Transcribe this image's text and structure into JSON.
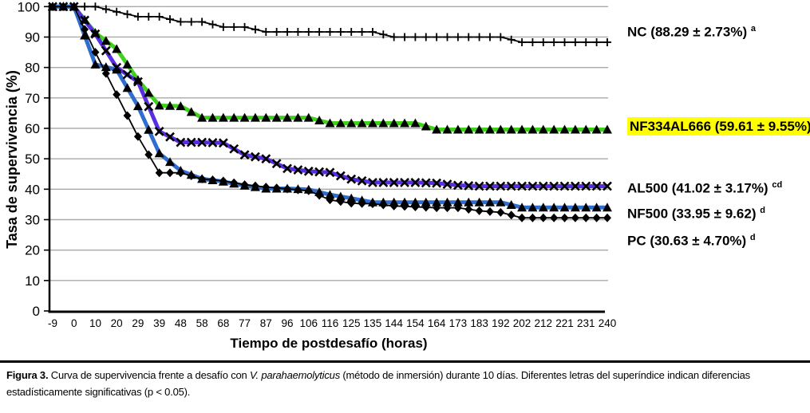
{
  "figure": {
    "caption": {
      "prefix": "Figura 3.",
      "body_before_italic": " Curva de supervivencia frente a desafío con ",
      "italic": "V. parahaemolyticus",
      "body_after_italic": " (método de inmersión) durante 10 días. Diferentes letras del superíndice indican diferencias estadísticamente significativas (p < 0.05)."
    }
  },
  "chart_data": {
    "type": "line",
    "title": "",
    "xlabel": "Tiempo de postdesafío (horas)",
    "ylabel": "Tasa de supervivencia (%)",
    "ylim": [
      0,
      100
    ],
    "y_ticks": [
      0,
      10,
      20,
      30,
      40,
      50,
      60,
      70,
      80,
      90,
      100
    ],
    "grid": "horizontal",
    "gridline_color": "#a9a9a9",
    "legend_position": "right",
    "categories": [
      -9,
      0,
      10,
      20,
      29,
      39,
      48,
      58,
      68,
      77,
      87,
      96,
      106,
      116,
      125,
      135,
      144,
      154,
      164,
      173,
      183,
      192,
      202,
      212,
      221,
      231,
      240
    ],
    "series": [
      {
        "name": "NC",
        "label": "NC (88.29 ± 2.73%)",
        "sup": "a",
        "highlight": "",
        "color": "#000000",
        "marker": "plus",
        "line_width": 1.8,
        "values": [
          100,
          100,
          100,
          98.3,
          96.7,
          96.7,
          95,
          95,
          93.3,
          93.3,
          91.7,
          91.7,
          91.7,
          91.7,
          91.7,
          91.7,
          90,
          90,
          90,
          90,
          90,
          90,
          88.3,
          88.3,
          88.3,
          88.3,
          88.3
        ]
      },
      {
        "name": "NF334AL666",
        "label": "NF334AL666 (59.61 ± 9.55%)",
        "sup": "",
        "highlight": "#ffff00",
        "color": "#3fd11c",
        "marker": "triangle",
        "line_width": 5,
        "values": [
          100,
          100,
          91.4,
          86.1,
          75.9,
          67.5,
          67.3,
          63.5,
          63.5,
          63.5,
          63.5,
          63.5,
          63.5,
          61.7,
          61.7,
          61.7,
          61.7,
          61.7,
          59.6,
          59.6,
          59.6,
          59.6,
          59.6,
          59.6,
          59.6,
          59.6,
          59.6
        ]
      },
      {
        "name": "AL500",
        "label": "AL500 (41.02 ± 3.17%)",
        "sup": "cd",
        "highlight": "",
        "color": "#5a2ee0",
        "marker": "x",
        "line_width": 5,
        "values": [
          100,
          100,
          91,
          80,
          75.3,
          59,
          55.4,
          55.4,
          55.2,
          51.3,
          50,
          46.8,
          45.9,
          45.5,
          43.3,
          42.2,
          42.2,
          42.2,
          42,
          41.3,
          41,
          41,
          41,
          41,
          41,
          41,
          41
        ]
      },
      {
        "name": "NF500",
        "label": "NF500 (33.95 ± 9.62)",
        "sup": "d",
        "highlight": "",
        "color": "#2f6ecf",
        "marker": "triangle",
        "line_width": 5,
        "values": [
          100,
          100,
          81,
          79.3,
          67.3,
          51.8,
          46.1,
          43.4,
          42.5,
          41.2,
          40.2,
          40.2,
          39.9,
          38.2,
          37,
          35.7,
          35.7,
          35.7,
          35.7,
          35.7,
          35.7,
          35.7,
          34,
          34,
          34,
          34,
          34
        ]
      },
      {
        "name": "PC",
        "label": "PC (30.63 ± 4.70%)",
        "sup": "d",
        "highlight": "",
        "color": "#000000",
        "marker": "diamond",
        "line_width": 1.8,
        "values": [
          100,
          100,
          85,
          71.1,
          57.3,
          45.4,
          45.4,
          43.4,
          42.7,
          41.5,
          40.7,
          40.1,
          39.5,
          36.5,
          35.4,
          35.2,
          34.5,
          34.2,
          33.9,
          33.9,
          32.9,
          32.4,
          30.6,
          30.6,
          30.6,
          30.6,
          30.6
        ]
      }
    ]
  }
}
